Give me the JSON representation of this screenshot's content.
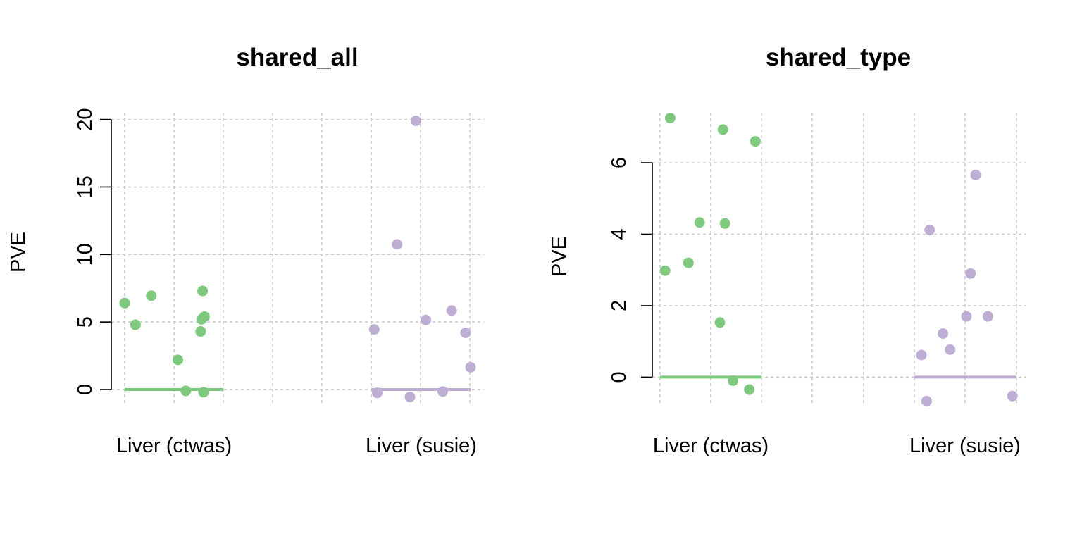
{
  "chart_data": [
    {
      "type": "scatter",
      "title": "shared_all",
      "ylabel": "PVE",
      "xlabel": "",
      "ylim": [
        -1.2,
        20.5
      ],
      "yticks": [
        0,
        5,
        10,
        15,
        20
      ],
      "categories": [
        "Liver (ctwas)",
        "Liver (susie)"
      ],
      "grid": true,
      "series": [
        {
          "category": "Liver (ctwas)",
          "color": "#7fc97f",
          "baseline": 0,
          "points": [
            {
              "x": 0.0,
              "y": 6.4
            },
            {
              "x": 0.11,
              "y": 4.8
            },
            {
              "x": 0.27,
              "y": 6.95
            },
            {
              "x": 0.54,
              "y": 2.2
            },
            {
              "x": 0.62,
              "y": -0.1
            },
            {
              "x": 0.77,
              "y": 4.3
            },
            {
              "x": 0.78,
              "y": 5.2
            },
            {
              "x": 0.79,
              "y": 7.3
            },
            {
              "x": 0.8,
              "y": -0.2
            },
            {
              "x": 0.81,
              "y": 5.4
            }
          ]
        },
        {
          "category": "Liver (susie)",
          "color": "#beaed4",
          "baseline": 0,
          "points": [
            {
              "x": 0.03,
              "y": 4.45
            },
            {
              "x": 0.06,
              "y": -0.25
            },
            {
              "x": 0.26,
              "y": 10.75
            },
            {
              "x": 0.39,
              "y": -0.55
            },
            {
              "x": 0.45,
              "y": 19.9
            },
            {
              "x": 0.55,
              "y": 5.15
            },
            {
              "x": 0.72,
              "y": -0.15
            },
            {
              "x": 0.81,
              "y": 5.85
            },
            {
              "x": 0.95,
              "y": 4.2
            },
            {
              "x": 1.0,
              "y": 1.65
            }
          ]
        }
      ]
    },
    {
      "type": "scatter",
      "title": "shared_type",
      "ylabel": "PVE",
      "xlabel": "",
      "ylim": [
        -0.8,
        7.4
      ],
      "yticks": [
        0,
        2,
        4,
        6
      ],
      "categories": [
        "Liver (ctwas)",
        "Liver (susie)"
      ],
      "grid": true,
      "series": [
        {
          "category": "Liver (ctwas)",
          "color": "#7fc97f",
          "baseline": 0,
          "points": [
            {
              "x": 0.05,
              "y": 2.98
            },
            {
              "x": 0.1,
              "y": 7.25
            },
            {
              "x": 0.28,
              "y": 3.2
            },
            {
              "x": 0.39,
              "y": 4.33
            },
            {
              "x": 0.59,
              "y": 1.53
            },
            {
              "x": 0.62,
              "y": 6.93
            },
            {
              "x": 0.64,
              "y": 4.3
            },
            {
              "x": 0.72,
              "y": -0.1
            },
            {
              "x": 0.88,
              "y": -0.35
            },
            {
              "x": 0.94,
              "y": 6.6
            }
          ]
        },
        {
          "category": "Liver (susie)",
          "color": "#beaed4",
          "baseline": 0,
          "points": [
            {
              "x": 0.07,
              "y": 0.62
            },
            {
              "x": 0.12,
              "y": -0.67
            },
            {
              "x": 0.15,
              "y": 4.12
            },
            {
              "x": 0.28,
              "y": 1.22
            },
            {
              "x": 0.35,
              "y": 0.77
            },
            {
              "x": 0.51,
              "y": 1.7
            },
            {
              "x": 0.55,
              "y": 2.9
            },
            {
              "x": 0.6,
              "y": 5.66
            },
            {
              "x": 0.72,
              "y": 1.7
            },
            {
              "x": 0.96,
              "y": -0.53
            }
          ]
        }
      ]
    }
  ]
}
